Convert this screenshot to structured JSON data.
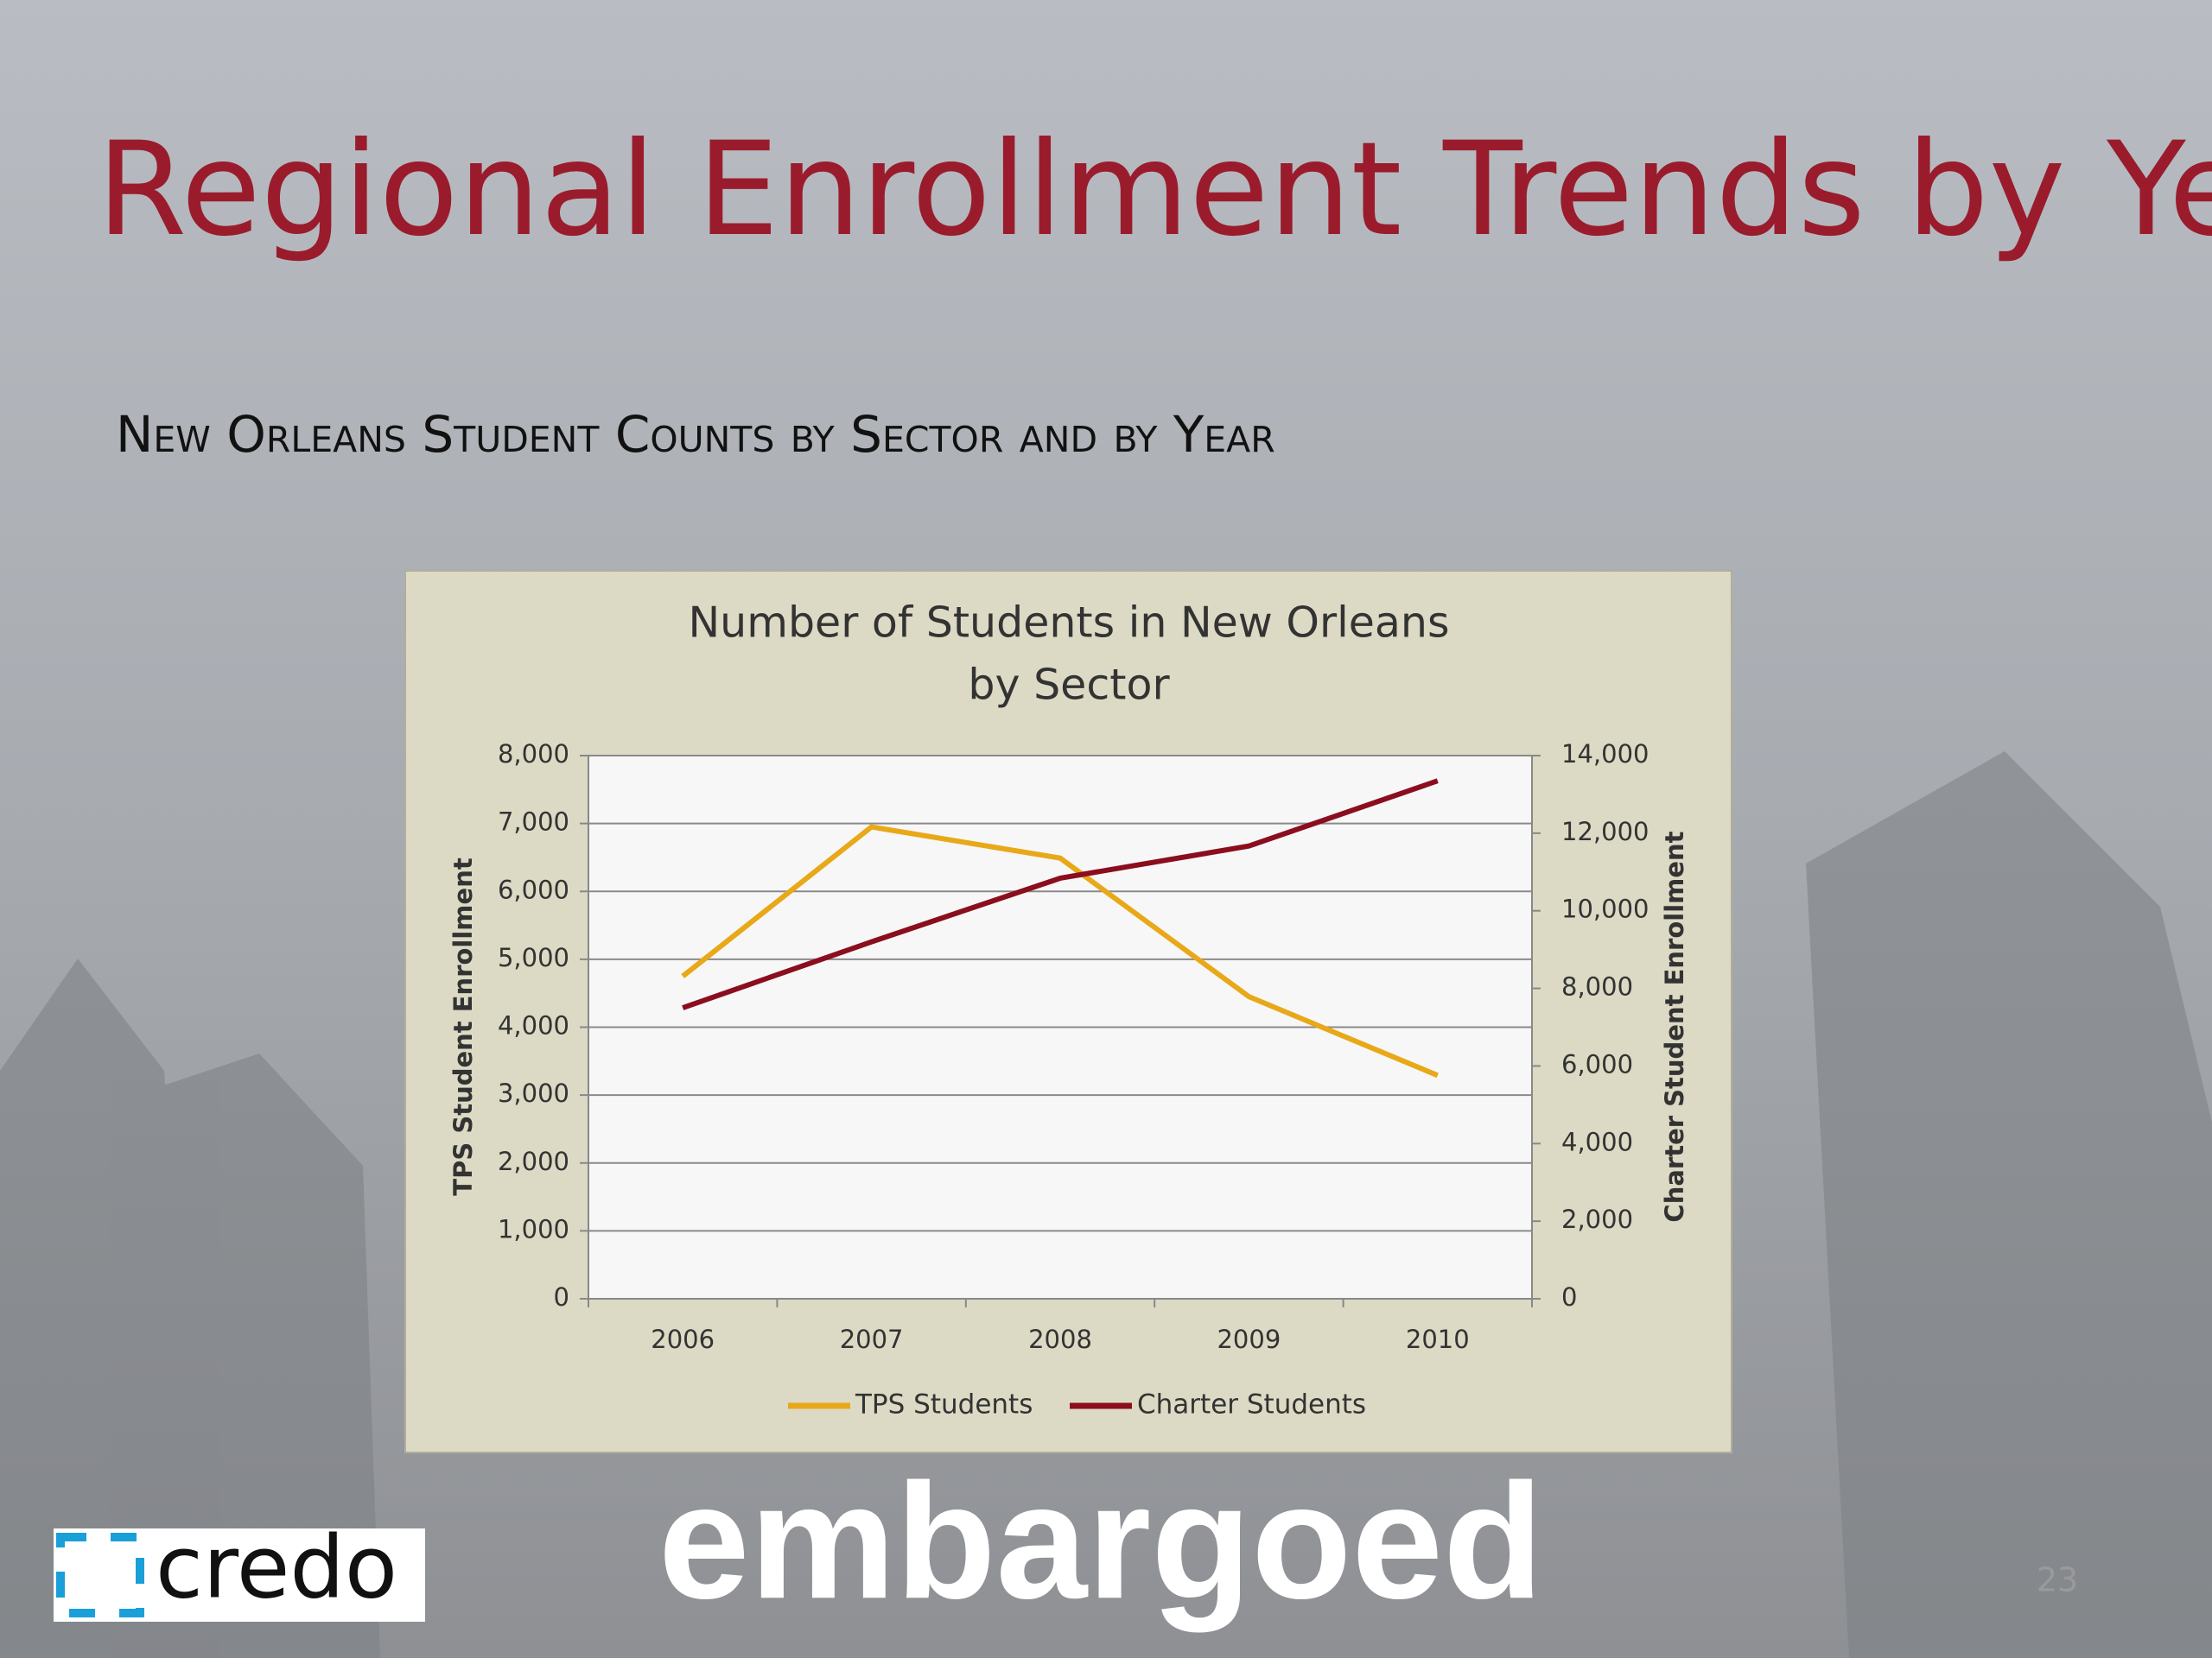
{
  "slide": {
    "title": "Regional Enrollment Trends by Year",
    "subtitle": "New Orleans Student Counts by Sector and by Year",
    "logo_text": "credo",
    "watermark": "embargoed",
    "page_number": "23"
  },
  "chart_data": {
    "type": "line",
    "title": [
      "Number of Students in New Orleans",
      "by Sector"
    ],
    "categories": [
      "2006",
      "2007",
      "2008",
      "2009",
      "2010"
    ],
    "series": [
      {
        "name": "TPS Students",
        "color": "#e8a818",
        "values": [
          4750,
          6950,
          6490,
          4450,
          3290
        ]
      },
      {
        "name": "Charter Students",
        "color": "#8b0e1e",
        "axis": "y2",
        "values": [
          7500,
          9200,
          10840,
          11670,
          13350
        ]
      }
    ],
    "ylabel": "TPS Student Enrollment",
    "y2label": "Charter Student Enrollment",
    "ylim": [
      0,
      8000
    ],
    "yticks": [
      0,
      {
        "value": 1000,
        "label": "1,000"
      },
      {
        "value": 2000,
        "label": "2,000"
      },
      {
        "value": 3000,
        "label": "3,000"
      },
      {
        "value": 4000,
        "label": "4,000"
      },
      {
        "value": 5000,
        "label": "5,000"
      },
      {
        "value": 6000,
        "label": "6,000"
      },
      {
        "value": 7000,
        "label": "7,000"
      },
      {
        "value": 8000,
        "label": "8,000"
      }
    ],
    "y2lim": [
      0,
      14000
    ],
    "y2ticks": [
      0,
      {
        "value": 2000,
        "label": "2,000"
      },
      {
        "value": 4000,
        "label": "4,000"
      },
      {
        "value": 6000,
        "label": "6,000"
      },
      {
        "value": 8000,
        "label": "8,000"
      },
      {
        "value": 10000,
        "label": "10,000"
      },
      {
        "value": 12000,
        "label": "12,000"
      },
      {
        "value": 14000,
        "label": "14,000"
      }
    ],
    "grid": true,
    "legend": "bottom"
  }
}
